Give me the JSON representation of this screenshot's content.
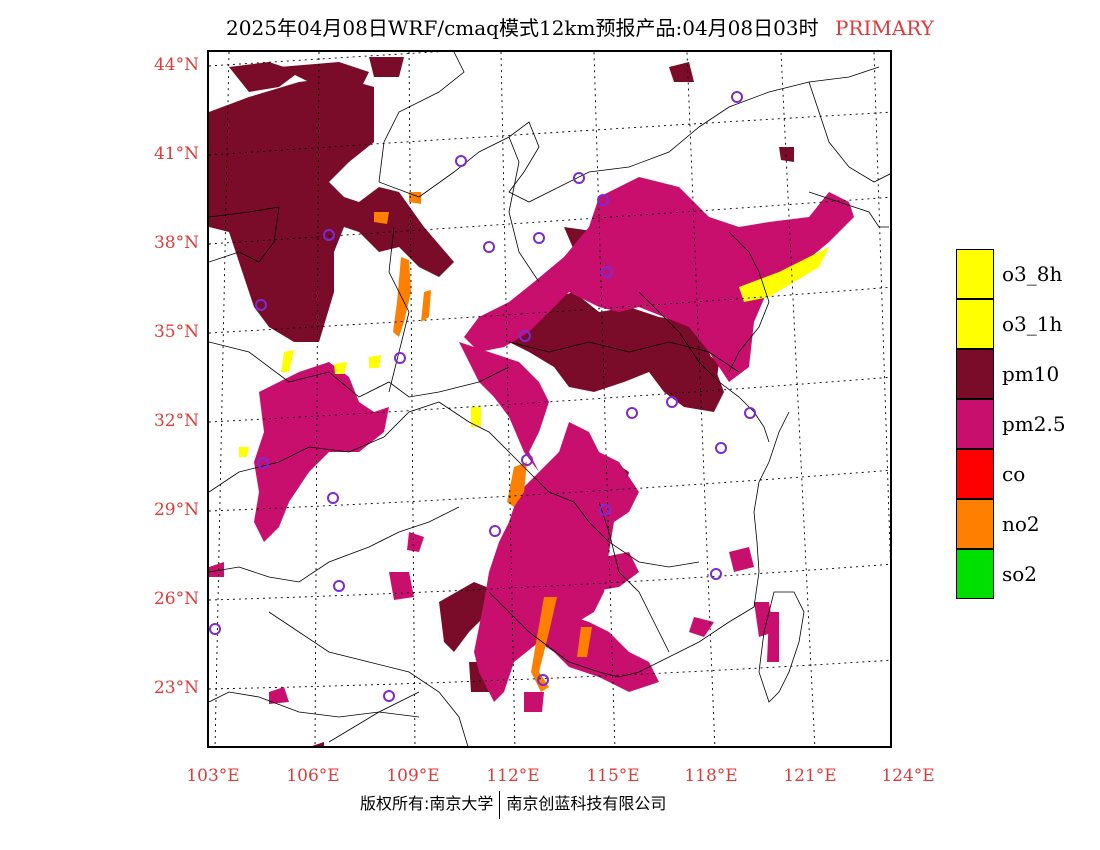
{
  "title": {
    "main": "2025年04月08日WRF/cmaq模式12km预报产品:04月08日03时",
    "tag": "PRIMARY"
  },
  "axes": {
    "lat_labels": [
      "44°N",
      "41°N",
      "38°N",
      "35°N",
      "32°N",
      "29°N",
      "26°N",
      "23°N"
    ],
    "lon_labels": [
      "103°E",
      "106°E",
      "109°E",
      "112°E",
      "115°E",
      "118°E",
      "121°E",
      "124°E"
    ]
  },
  "legend": [
    {
      "label": "o3_8h",
      "color": "#ffff00"
    },
    {
      "label": "o3_1h",
      "color": "#ffff00"
    },
    {
      "label": "pm10",
      "color": "#7a0c2a"
    },
    {
      "label": "pm2.5",
      "color": "#c90f6e"
    },
    {
      "label": "co",
      "color": "#ff0000"
    },
    {
      "label": "no2",
      "color": "#ff8000"
    },
    {
      "label": "so2",
      "color": "#00e000"
    }
  ],
  "footer": {
    "left": "版权所有:南京大学",
    "right": "南京创蓝科技有限公司"
  },
  "colors": {
    "pm10": "#7a0c2a",
    "pm25": "#c90f6e",
    "no2": "#ff8000",
    "o3": "#ffff00",
    "station": "#7b2bd6",
    "label": "#e03a3a"
  }
}
